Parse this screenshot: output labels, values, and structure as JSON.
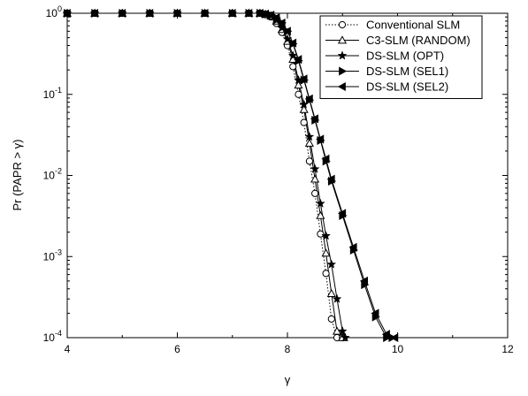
{
  "chart_data": {
    "type": "line",
    "title": "",
    "xlabel": "γ",
    "ylabel": "Pr (PAPR > γ)",
    "xlim": [
      4,
      12
    ],
    "ylim": [
      0.0001,
      1
    ],
    "yscale": "log",
    "grid": false,
    "legend_position": "top-right",
    "x_ticks": [
      {
        "value": 4,
        "label": "4"
      },
      {
        "value": 6,
        "label": "6"
      },
      {
        "value": 8,
        "label": "8"
      },
      {
        "value": 10,
        "label": "10"
      },
      {
        "value": 12,
        "label": "12"
      }
    ],
    "y_ticks": [
      {
        "value": 1,
        "mantissa": "10",
        "exp": "0"
      },
      {
        "value": 0.1,
        "mantissa": "10",
        "exp": "-1"
      },
      {
        "value": 0.01,
        "mantissa": "10",
        "exp": "-2"
      },
      {
        "value": 0.001,
        "mantissa": "10",
        "exp": "-3"
      },
      {
        "value": 0.0001,
        "mantissa": "10",
        "exp": "-4"
      }
    ],
    "series": [
      {
        "name": "Conventional SLM",
        "marker": "circle-open",
        "dash": "dotted",
        "x": [
          4.0,
          4.5,
          5.0,
          5.5,
          6.0,
          6.5,
          7.0,
          7.3,
          7.5,
          7.6,
          7.7,
          7.8,
          7.9,
          8.0,
          8.1,
          8.2,
          8.3,
          8.4,
          8.5,
          8.6,
          8.7,
          8.8,
          8.9,
          9.0
        ],
        "y": [
          1,
          1,
          1,
          1,
          1,
          1,
          1,
          1,
          1,
          0.96,
          0.9,
          0.75,
          0.58,
          0.4,
          0.22,
          0.1,
          0.045,
          0.015,
          0.006,
          0.0019,
          0.00062,
          0.00017,
          0.0001,
          0.0001
        ]
      },
      {
        "name": "C3-SLM (RANDOM)",
        "marker": "triangle-up-open",
        "dash": "solid",
        "x": [
          4.0,
          4.5,
          5.0,
          5.5,
          6.0,
          6.5,
          7.0,
          7.3,
          7.5,
          7.6,
          7.7,
          7.8,
          7.9,
          8.0,
          8.1,
          8.2,
          8.3,
          8.4,
          8.5,
          8.6,
          8.7,
          8.8,
          8.9,
          9.0
        ],
        "y": [
          1,
          1,
          1,
          1,
          1,
          1,
          1,
          1,
          1,
          0.97,
          0.92,
          0.8,
          0.63,
          0.45,
          0.27,
          0.13,
          0.065,
          0.025,
          0.009,
          0.0032,
          0.0011,
          0.00035,
          0.00012,
          0.0001
        ]
      },
      {
        "name": "DS-SLM (OPT)",
        "marker": "star-filled",
        "dash": "solid",
        "x": [
          4.0,
          4.5,
          5.0,
          5.5,
          6.0,
          6.5,
          7.0,
          7.3,
          7.5,
          7.6,
          7.7,
          7.8,
          7.9,
          8.0,
          8.1,
          8.2,
          8.3,
          8.4,
          8.5,
          8.6,
          8.7,
          8.8,
          8.9,
          9.0,
          9.05
        ],
        "y": [
          1,
          1,
          1,
          1,
          1,
          1,
          1,
          1,
          1,
          0.97,
          0.93,
          0.82,
          0.66,
          0.48,
          0.3,
          0.15,
          0.075,
          0.03,
          0.012,
          0.0045,
          0.0018,
          0.0008,
          0.0003,
          0.00012,
          0.0001
        ]
      },
      {
        "name": "DS-SLM (SEL1)",
        "marker": "triangle-right-filled",
        "dash": "solid",
        "x": [
          4.0,
          4.5,
          5.0,
          5.5,
          6.0,
          6.5,
          7.0,
          7.3,
          7.5,
          7.6,
          7.7,
          7.8,
          7.9,
          8.0,
          8.1,
          8.2,
          8.3,
          8.4,
          8.5,
          8.6,
          8.7,
          8.8,
          9.0,
          9.2,
          9.4,
          9.6,
          9.8,
          9.9
        ],
        "y": [
          1,
          1,
          1,
          1,
          1,
          1,
          1,
          1,
          1,
          0.98,
          0.95,
          0.88,
          0.76,
          0.6,
          0.42,
          0.26,
          0.15,
          0.085,
          0.048,
          0.027,
          0.015,
          0.0085,
          0.0032,
          0.0012,
          0.00045,
          0.00018,
          0.0001,
          0.0001
        ]
      },
      {
        "name": "DS-SLM (SEL2)",
        "marker": "triangle-left-filled",
        "dash": "solid",
        "x": [
          4.0,
          4.5,
          5.0,
          5.5,
          6.0,
          6.5,
          7.0,
          7.3,
          7.5,
          7.6,
          7.7,
          7.8,
          7.9,
          8.0,
          8.1,
          8.2,
          8.3,
          8.4,
          8.5,
          8.6,
          8.7,
          8.8,
          9.0,
          9.2,
          9.4,
          9.6,
          9.8,
          9.95
        ],
        "y": [
          1,
          1,
          1,
          1,
          1,
          1,
          1,
          1,
          1,
          0.98,
          0.95,
          0.88,
          0.76,
          0.6,
          0.43,
          0.27,
          0.155,
          0.088,
          0.05,
          0.028,
          0.016,
          0.009,
          0.0034,
          0.0013,
          0.0005,
          0.0002,
          0.00011,
          0.0001
        ]
      }
    ]
  }
}
